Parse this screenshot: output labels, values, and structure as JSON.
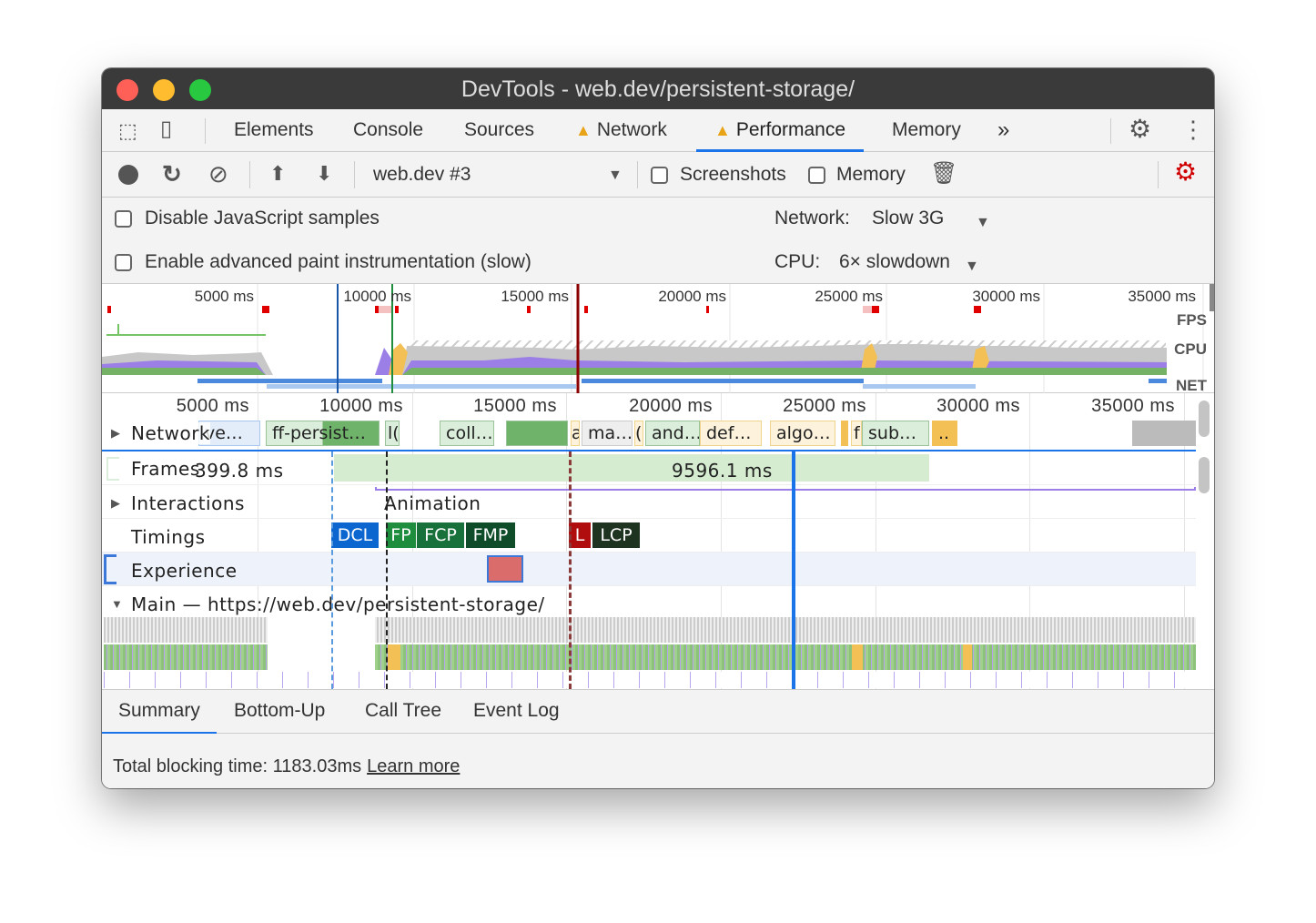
{
  "window": {
    "title": "DevTools - web.dev/persistent-storage/"
  },
  "tabs": [
    {
      "label": "Elements"
    },
    {
      "label": "Console"
    },
    {
      "label": "Sources"
    },
    {
      "label": "Network",
      "warning": true
    },
    {
      "label": "Performance",
      "warning": true,
      "active": true
    },
    {
      "label": "Memory"
    }
  ],
  "tabs_more": "»",
  "toolbar": {
    "recording": "web.dev #3",
    "screenshots_label": "Screenshots",
    "memory_label": "Memory",
    "screenshots_checked": false,
    "memory_checked": false
  },
  "settings": {
    "disable_js_label": "Disable JavaScript samples",
    "advanced_paint_label": "Enable advanced paint instrumentation (slow)",
    "network_label": "Network:",
    "network_value": "Slow 3G",
    "cpu_label": "CPU:",
    "cpu_value": "6× slowdown"
  },
  "overview": {
    "ticks": [
      "5000 ms",
      "10000 ms",
      "15000 ms",
      "20000 ms",
      "25000 ms",
      "30000 ms",
      "35000 ms"
    ],
    "fps_label": "FPS",
    "cpu_label": "CPU",
    "net_label": "NET"
  },
  "timeline": {
    "ticks": [
      "5000 ms",
      "10000 ms",
      "15000 ms",
      "20000 ms",
      "25000 ms",
      "30000 ms",
      "35000 ms"
    ],
    "network": {
      "label": "Network",
      "items": [
        "ve…",
        "ff-persist…",
        "l(",
        "coll…",
        "a",
        "ma…",
        "(",
        "and…",
        "def…",
        "algo…",
        "f",
        "sub…",
        ".."
      ]
    },
    "frames": {
      "label": "Frames",
      "values": [
        "399.8 ms",
        "9596.1 ms"
      ]
    },
    "interactions": {
      "label": "Interactions",
      "animation": "Animation"
    },
    "timings": {
      "label": "Timings",
      "markers": [
        "DCL",
        "FP",
        "FCP",
        "FMP",
        "L",
        "LCP"
      ]
    },
    "experience": {
      "label": "Experience"
    },
    "main": {
      "label": "Main — https://web.dev/persistent-storage/"
    }
  },
  "bottom_tabs": [
    {
      "label": "Summary",
      "active": true
    },
    {
      "label": "Bottom-Up"
    },
    {
      "label": "Call Tree"
    },
    {
      "label": "Event Log"
    }
  ],
  "footer": {
    "text": "Total blocking time: 1183.03ms",
    "link": "Learn more"
  },
  "colors": {
    "accent": "#1a73e8",
    "scripting": "#f2c055",
    "rendering": "#9b7fe6",
    "painting": "#75b265",
    "warning": "#e8a317",
    "record_settings": "#d00000"
  }
}
